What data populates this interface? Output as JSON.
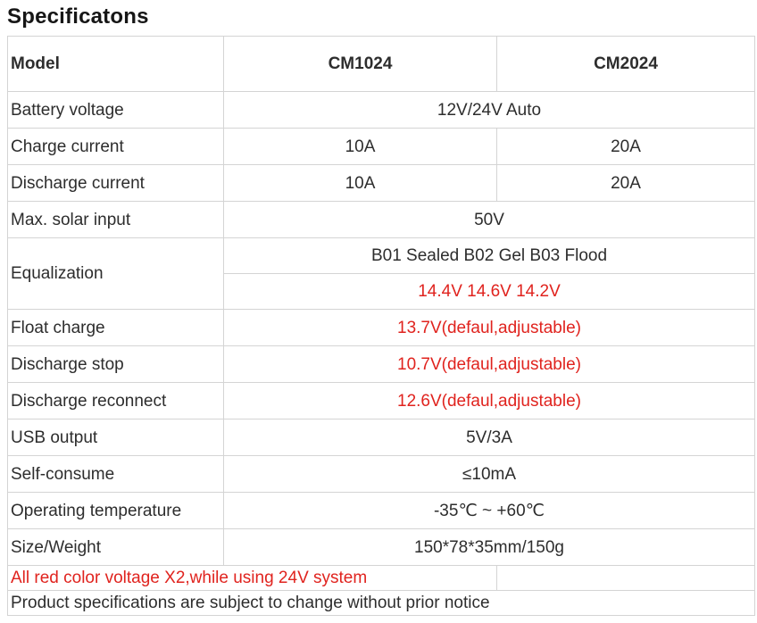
{
  "page": {
    "title": "Specificatons"
  },
  "colors": {
    "red_accent": "#e0231e",
    "body_text": "#2d2d2d",
    "title_text": "#161616",
    "table_border": "#d4d4d4",
    "background": "#ffffff"
  },
  "table": {
    "header": {
      "model": "Model",
      "cm1024": "CM1024",
      "cm2024": "CM2024"
    },
    "rows": [
      {
        "label": "Battery voltage",
        "value": "12V/24V Auto"
      },
      {
        "label": "Charge current",
        "v1": "10A",
        "v2": "20A"
      },
      {
        "label": "Discharge current",
        "v1": "10A",
        "v2": "20A"
      },
      {
        "label": "Max. solar input",
        "value": "50V"
      },
      {
        "label": "Equalization",
        "line1": "B01 Sealed B02 Gel B03 Flood",
        "line2": "14.4V 14.6V 14.2V"
      },
      {
        "label": "Float charge",
        "value": "13.7V(defaul,adjustable)"
      },
      {
        "label": "Discharge stop",
        "value": "10.7V(defaul,adjustable)"
      },
      {
        "label": "Discharge reconnect",
        "value": "12.6V(defaul,adjustable)"
      },
      {
        "label": "USB output",
        "value": "5V/3A"
      },
      {
        "label": "Self-consume",
        "value": "≤10mA"
      },
      {
        "label": "Operating temperature",
        "value": "-35℃ ~ +60℃"
      },
      {
        "label": "Size/Weight",
        "value": "150*78*35mm/150g"
      }
    ],
    "notes": {
      "red_note": "All red color voltage X2,while using 24V system",
      "disclaimer": "Product specifications are subject to change without prior notice"
    }
  }
}
